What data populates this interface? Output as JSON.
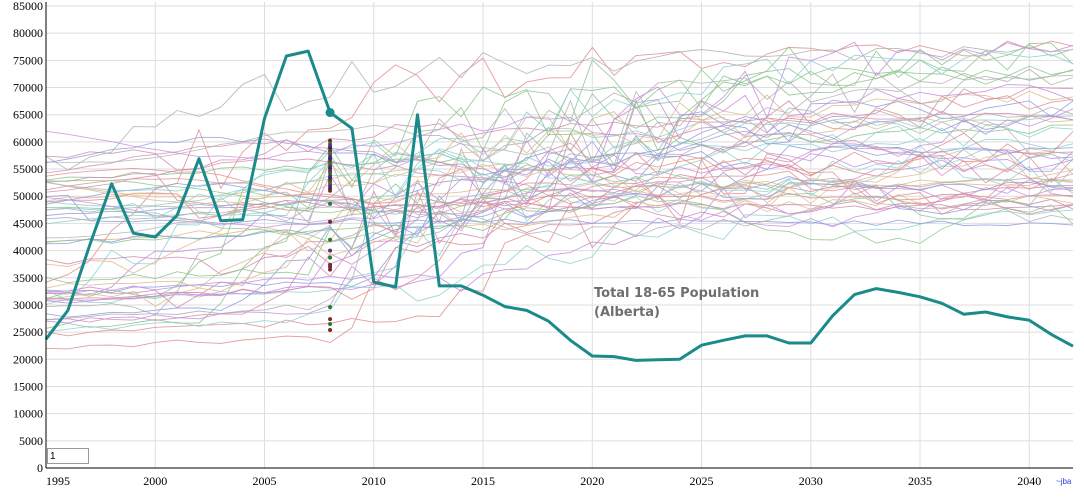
{
  "chart_data": {
    "type": "line",
    "title": "",
    "xlabel": "",
    "ylabel": "",
    "xlim": [
      1995,
      2042
    ],
    "ylim": [
      0,
      85000
    ],
    "grid": true,
    "x_ticks": [
      "1995",
      "2000",
      "2005",
      "2010",
      "2015",
      "2020",
      "2025",
      "2030",
      "2035",
      "2040"
    ],
    "y_ticks": [
      "0",
      "5000",
      "10000",
      "15000",
      "20000",
      "25000",
      "30000",
      "35000",
      "40000",
      "45000",
      "50000",
      "55000",
      "60000",
      "65000",
      "70000",
      "75000",
      "80000",
      "85000"
    ],
    "annotation": [
      "Total 18-65 Population",
      "(Alberta)"
    ],
    "highlight_color": "#1a8a8a",
    "background_line_colors": [
      "#8b9be0",
      "#e08b8b",
      "#8bc48b",
      "#c48be0",
      "#e0b88b",
      "#8bd0d0",
      "#b0b0b0",
      "#d08bb0"
    ],
    "highlight_series": {
      "x": [
        1995,
        1996,
        1997,
        1998,
        1999,
        2000,
        2001,
        2002,
        2003,
        2004,
        2005,
        2006,
        2007,
        2008,
        2009,
        2010,
        2011,
        2012,
        2013,
        2014,
        2015,
        2016,
        2017,
        2018,
        2019,
        2020,
        2021,
        2022,
        2023,
        2024,
        2025,
        2026,
        2027,
        2028,
        2029,
        2030,
        2031,
        2032,
        2033,
        2034,
        2035,
        2036,
        2037,
        2038,
        2039,
        2040,
        2041,
        2042
      ],
      "y": [
        23700,
        29000,
        41000,
        52300,
        43200,
        42500,
        46500,
        56900,
        45500,
        45700,
        64300,
        75800,
        76700,
        65400,
        62500,
        34200,
        33300,
        65000,
        33500,
        33500,
        31800,
        29700,
        29000,
        27000,
        23500,
        20600,
        20500,
        19800,
        19900,
        20000,
        22600,
        23500,
        24300,
        24300,
        23000,
        23000,
        28000,
        31900,
        33000,
        32300,
        31500,
        30300,
        28300,
        28700,
        27800,
        27200,
        24600,
        22400
      ]
    },
    "highlight_marker": {
      "x": 2008,
      "y": 65400
    },
    "dot_column": {
      "x": 2008,
      "values": [
        60200,
        59600,
        59200,
        58800,
        58300,
        57800,
        57300,
        56900,
        56400,
        56000,
        55500,
        55100,
        54600,
        54200,
        53700,
        53300,
        52800,
        52400,
        51900,
        51400,
        51000,
        48600,
        45300,
        42000,
        40000,
        38700,
        37400,
        37000,
        36500,
        29600,
        27400,
        26500,
        25400
      ],
      "colors": [
        "#7a2a2a",
        "#2a7a2a",
        "#6a2a6a",
        "#2a2a7a",
        "#7a2a2a",
        "#2a7a2a",
        "#6a2a6a",
        "#2a2a7a",
        "#7a2a2a",
        "#2a7a2a",
        "#6a2a6a",
        "#2a2a7a",
        "#7a2a2a",
        "#2a7a2a",
        "#6a2a6a",
        "#2a2a7a",
        "#7a2a2a",
        "#2a7a2a",
        "#6a2a6a",
        "#2a2a7a",
        "#7a2a2a",
        "#2a7a2a",
        "#7a2a2a",
        "#2a7a2a",
        "#6a2a6a",
        "#2a7a2a",
        "#7a2a2a",
        "#6a2a6a",
        "#7a2a2a",
        "#2a7a2a",
        "#7a2a2a",
        "#2a7a2a",
        "#7a2a2a"
      ]
    }
  },
  "controls": {
    "year_input_value": "1"
  },
  "credit_text": "~jba"
}
